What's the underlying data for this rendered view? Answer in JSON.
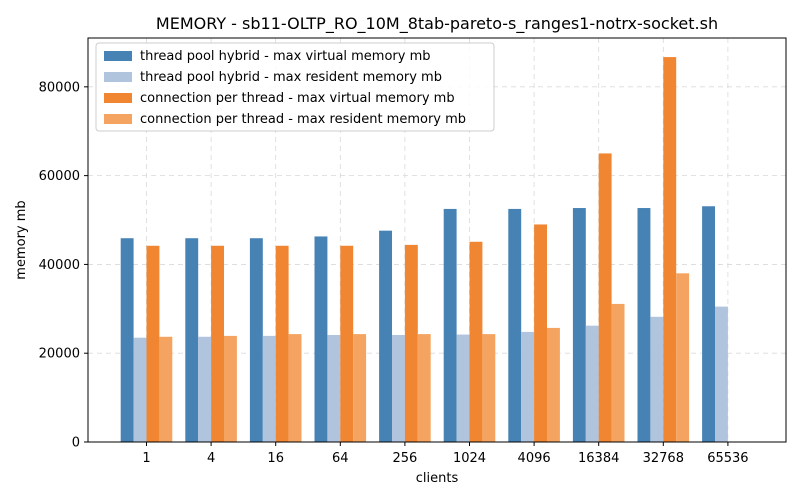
{
  "chart_data": {
    "type": "bar",
    "title": "MEMORY - sb11-OLTP_RO_10M_8tab-pareto-s_ranges1-notrx-socket.sh",
    "xlabel": "clients",
    "ylabel": "memory mb",
    "categories": [
      "1",
      "4",
      "16",
      "64",
      "256",
      "1024",
      "4096",
      "16384",
      "32768",
      "65536"
    ],
    "ylim": [
      0,
      91000
    ],
    "yticks": [
      0,
      20000,
      40000,
      60000,
      80000
    ],
    "grid": true,
    "legend_position": "top-left",
    "series": [
      {
        "name": "thread pool hybrid - max virtual memory mb",
        "color": "#4682b4",
        "values": [
          45900,
          45900,
          45900,
          46300,
          47600,
          52500,
          52500,
          52700,
          52700,
          53100
        ]
      },
      {
        "name": "thread pool hybrid - max resident memory mb",
        "color": "#b0c4de",
        "values": [
          23500,
          23700,
          23900,
          24100,
          24100,
          24200,
          24800,
          26200,
          28200,
          30500
        ]
      },
      {
        "name": "connection per thread - max virtual memory mb",
        "color": "#f08532",
        "values": [
          44200,
          44200,
          44200,
          44200,
          44400,
          45100,
          49000,
          65000,
          86700,
          null
        ]
      },
      {
        "name": "connection per thread - max resident memory mb",
        "color": "#f4a460",
        "values": [
          23700,
          23900,
          24300,
          24300,
          24300,
          24300,
          25700,
          31100,
          38000,
          null
        ]
      }
    ]
  }
}
